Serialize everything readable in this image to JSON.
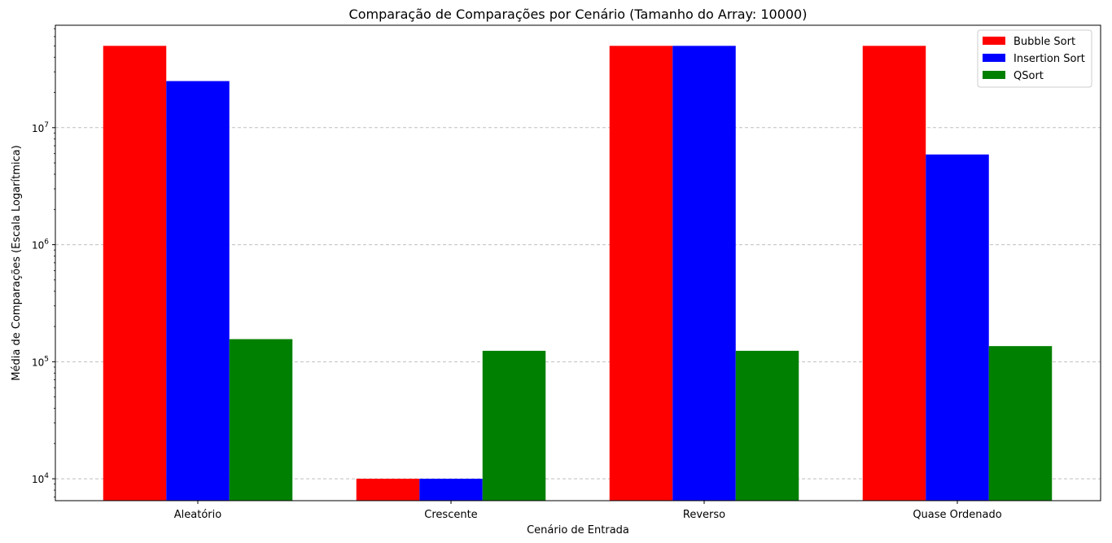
{
  "chart_data": {
    "type": "bar",
    "title": "Comparação de Comparações por Cenário (Tamanho do Array: 10000)",
    "xlabel": "Cenário de Entrada",
    "ylabel": "Média de Comparações (Escala Logarítmica)",
    "yscale": "log",
    "ylim": [
      6500,
      75000000
    ],
    "grid": "y-major-dashed",
    "legend_position": "top-right",
    "categories": [
      "Aleatório",
      "Crescente",
      "Reverso",
      "Quase Ordenado"
    ],
    "yticks": [
      {
        "value": 10000,
        "mantissa": "10",
        "exponent": "4"
      },
      {
        "value": 100000,
        "mantissa": "10",
        "exponent": "5"
      },
      {
        "value": 1000000,
        "mantissa": "10",
        "exponent": "6"
      },
      {
        "value": 10000000,
        "mantissa": "10",
        "exponent": "7"
      }
    ],
    "series": [
      {
        "name": "Bubble Sort",
        "color": "#ff0000",
        "values": [
          49995000,
          9999,
          49995000,
          49995000
        ]
      },
      {
        "name": "Insertion Sort",
        "color": "#0000ff",
        "values": [
          25000000,
          9999,
          49995000,
          5900000
        ]
      },
      {
        "name": "QSort",
        "color": "#008000",
        "values": [
          156000,
          124000,
          124000,
          136000
        ]
      }
    ]
  }
}
